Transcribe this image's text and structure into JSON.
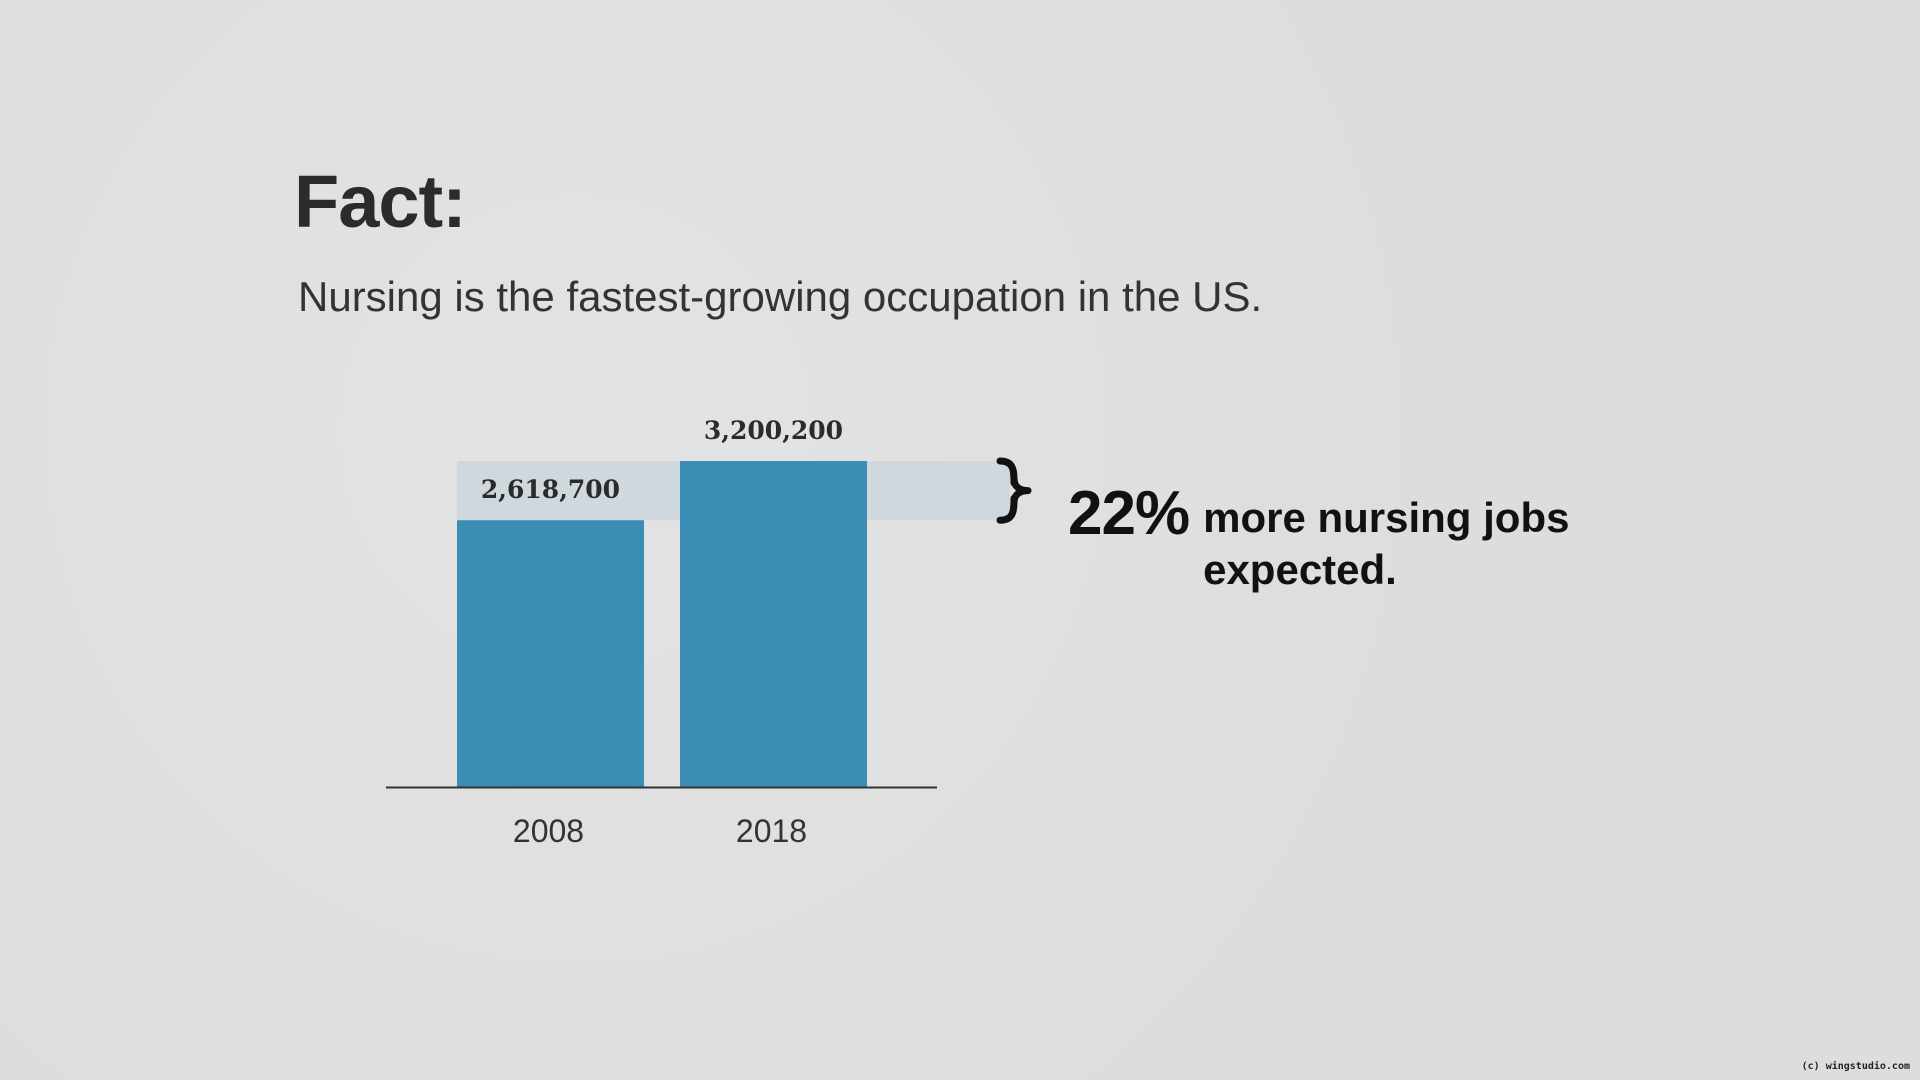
{
  "slide": {
    "title": "Fact:",
    "subtitle": "Nursing is the fastest-growing occupation in the US.",
    "watermark": "(c) wingstudio.com"
  },
  "callout": {
    "percent": "22%",
    "line1": "more nursing jobs",
    "line2": "expected."
  },
  "colors": {
    "bar": "#3a8db5",
    "highlight_band": "#cfd8dc",
    "background": "#dddddd",
    "axis": "#333333"
  },
  "chart_data": {
    "type": "bar",
    "categories": [
      "2008",
      "2018"
    ],
    "values": [
      2618700,
      3200200
    ],
    "data_labels": [
      "2,618,700",
      "3,200,200"
    ],
    "title": "",
    "xlabel": "",
    "ylabel": "",
    "ylim": [
      0,
      3200200
    ],
    "grid": false,
    "highlight_range": [
      2618700,
      3200200
    ]
  }
}
